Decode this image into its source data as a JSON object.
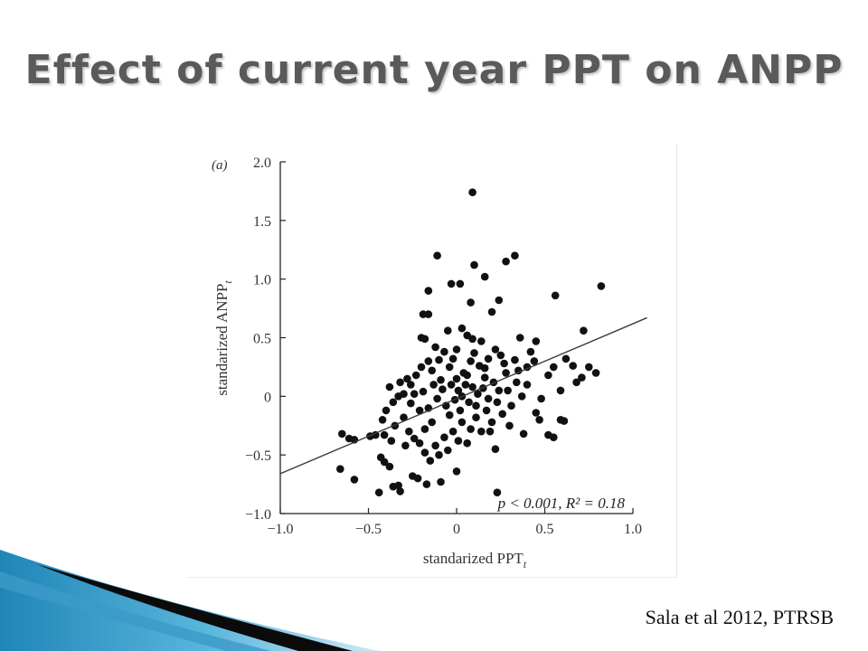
{
  "slide": {
    "title": "Effect of current year PPT on ANPP",
    "citation": "Sala et al 2012, PTRSB"
  },
  "chart_data": {
    "type": "scatter",
    "panel_label": "(a)",
    "xlabel": "standarized PPT",
    "xlabel_subscript": "t",
    "ylabel": "standarized ANPP",
    "ylabel_subscript": "t",
    "xlim": [
      -1.0,
      1.0
    ],
    "ylim": [
      -1.0,
      2.0
    ],
    "x_ticks": [
      -1.0,
      -0.5,
      0,
      0.5,
      1.0
    ],
    "x_tick_labels": [
      "−1.0",
      "−0.5",
      "0",
      "0.5",
      "1.0"
    ],
    "y_ticks": [
      -1.0,
      -0.5,
      0,
      0.5,
      1.0,
      1.5,
      2.0
    ],
    "y_tick_labels": [
      "−1.0",
      "−0.5",
      "0",
      "0.5",
      "1.0",
      "1.5",
      "2.0"
    ],
    "annotation": "p < 0.001, R² = 0.18",
    "grid": false,
    "point_color": "#111111",
    "line_color": "#3a3a3a",
    "regression_line": {
      "x": [
        -1.0,
        1.08
      ],
      "y": [
        -0.66,
        0.67
      ]
    },
    "points": [
      [
        0.09,
        1.74
      ],
      [
        -0.11,
        1.2
      ],
      [
        0.33,
        1.2
      ],
      [
        0.28,
        1.15
      ],
      [
        0.1,
        1.12
      ],
      [
        0.16,
        1.02
      ],
      [
        -0.03,
        0.96
      ],
      [
        0.02,
        0.96
      ],
      [
        0.56,
        0.86
      ],
      [
        0.82,
        0.94
      ],
      [
        -0.16,
        0.9
      ],
      [
        0.24,
        0.82
      ],
      [
        0.08,
        0.8
      ],
      [
        -0.19,
        0.7
      ],
      [
        -0.16,
        0.7
      ],
      [
        0.2,
        0.72
      ],
      [
        0.72,
        0.56
      ],
      [
        0.03,
        0.58
      ],
      [
        -0.05,
        0.56
      ],
      [
        0.06,
        0.52
      ],
      [
        0.09,
        0.49
      ],
      [
        0.36,
        0.5
      ],
      [
        0.45,
        0.47
      ],
      [
        -0.18,
        0.49
      ],
      [
        0.14,
        0.47
      ],
      [
        -0.65,
        -0.32
      ],
      [
        -0.61,
        -0.36
      ],
      [
        -0.58,
        -0.37
      ],
      [
        -0.49,
        -0.34
      ],
      [
        -0.46,
        -0.33
      ],
      [
        -0.41,
        -0.33
      ],
      [
        -0.66,
        -0.62
      ],
      [
        -0.58,
        -0.71
      ],
      [
        -0.43,
        -0.52
      ],
      [
        -0.41,
        -0.56
      ],
      [
        -0.38,
        -0.6
      ],
      [
        -0.44,
        -0.82
      ],
      [
        -0.36,
        -0.77
      ],
      [
        -0.33,
        -0.76
      ],
      [
        -0.32,
        -0.81
      ],
      [
        -0.25,
        -0.68
      ],
      [
        -0.22,
        -0.7
      ],
      [
        -0.17,
        -0.75
      ],
      [
        -0.09,
        -0.73
      ],
      [
        0.0,
        -0.64
      ],
      [
        0.23,
        -0.82
      ],
      [
        0.22,
        -0.45
      ],
      [
        0.38,
        -0.32
      ],
      [
        0.47,
        -0.2
      ],
      [
        0.52,
        -0.33
      ],
      [
        0.55,
        -0.35
      ],
      [
        0.59,
        -0.2
      ],
      [
        0.61,
        -0.21
      ],
      [
        0.45,
        -0.14
      ],
      [
        0.48,
        -0.02
      ],
      [
        0.52,
        0.18
      ],
      [
        0.55,
        0.25
      ],
      [
        0.62,
        0.32
      ],
      [
        0.68,
        0.12
      ],
      [
        0.71,
        0.16
      ],
      [
        0.75,
        0.25
      ],
      [
        0.79,
        0.2
      ],
      [
        0.66,
        0.26
      ],
      [
        0.59,
        0.05
      ],
      [
        0.42,
        0.38
      ],
      [
        0.4,
        0.25
      ],
      [
        0.33,
        0.31
      ],
      [
        0.28,
        0.2
      ],
      [
        0.25,
        0.35
      ],
      [
        0.22,
        0.4
      ],
      [
        0.18,
        0.32
      ],
      [
        0.16,
        0.16
      ],
      [
        0.13,
        0.26
      ],
      [
        0.1,
        0.37
      ],
      [
        0.08,
        0.3
      ],
      [
        0.04,
        0.2
      ],
      [
        0.0,
        0.4
      ],
      [
        -0.02,
        0.32
      ],
      [
        -0.04,
        0.25
      ],
      [
        -0.07,
        0.38
      ],
      [
        -0.1,
        0.31
      ],
      [
        -0.12,
        0.42
      ],
      [
        -0.14,
        0.22
      ],
      [
        -0.16,
        0.3
      ],
      [
        -0.2,
        0.25
      ],
      [
        -0.23,
        0.18
      ],
      [
        -0.26,
        0.1
      ],
      [
        -0.28,
        0.15
      ],
      [
        -0.3,
        0.02
      ],
      [
        -0.33,
        0.0
      ],
      [
        -0.36,
        -0.05
      ],
      [
        -0.38,
        0.08
      ],
      [
        -0.4,
        -0.12
      ],
      [
        -0.42,
        -0.2
      ],
      [
        -0.35,
        -0.25
      ],
      [
        -0.3,
        -0.18
      ],
      [
        -0.27,
        -0.3
      ],
      [
        -0.24,
        -0.36
      ],
      [
        -0.21,
        -0.4
      ],
      [
        -0.18,
        -0.48
      ],
      [
        -0.15,
        -0.55
      ],
      [
        -0.12,
        -0.42
      ],
      [
        -0.1,
        -0.5
      ],
      [
        -0.07,
        -0.35
      ],
      [
        -0.05,
        -0.46
      ],
      [
        -0.02,
        -0.3
      ],
      [
        0.01,
        -0.38
      ],
      [
        0.03,
        -0.22
      ],
      [
        0.06,
        -0.4
      ],
      [
        0.08,
        -0.28
      ],
      [
        0.11,
        -0.18
      ],
      [
        0.14,
        -0.3
      ],
      [
        0.17,
        -0.12
      ],
      [
        0.2,
        -0.22
      ],
      [
        0.23,
        -0.05
      ],
      [
        0.26,
        -0.15
      ],
      [
        0.29,
        0.05
      ],
      [
        0.31,
        -0.08
      ],
      [
        0.34,
        0.12
      ],
      [
        0.37,
        0.0
      ],
      [
        0.01,
        0.05
      ],
      [
        0.03,
        0.0
      ],
      [
        0.05,
        0.1
      ],
      [
        0.07,
        -0.05
      ],
      [
        0.09,
        0.08
      ],
      [
        0.12,
        0.02
      ],
      [
        0.15,
        0.07
      ],
      [
        0.18,
        -0.02
      ],
      [
        0.21,
        0.12
      ],
      [
        0.24,
        0.05
      ],
      [
        -0.01,
        -0.03
      ],
      [
        -0.03,
        0.1
      ],
      [
        -0.06,
        -0.08
      ],
      [
        -0.08,
        0.06
      ],
      [
        -0.11,
        -0.02
      ],
      [
        -0.13,
        0.1
      ],
      [
        -0.16,
        -0.1
      ],
      [
        -0.19,
        0.04
      ],
      [
        -0.21,
        -0.12
      ],
      [
        -0.24,
        0.02
      ],
      [
        0.0,
        0.15
      ],
      [
        0.02,
        -0.12
      ],
      [
        0.06,
        0.18
      ],
      [
        -0.04,
        -0.16
      ],
      [
        0.11,
        -0.08
      ],
      [
        -0.09,
        0.14
      ],
      [
        0.16,
        0.24
      ],
      [
        -0.14,
        -0.22
      ],
      [
        0.19,
        -0.3
      ],
      [
        -0.18,
        -0.28
      ],
      [
        0.27,
        0.28
      ],
      [
        -0.26,
        -0.06
      ],
      [
        0.3,
        -0.25
      ],
      [
        -0.29,
        -0.42
      ],
      [
        0.35,
        0.22
      ],
      [
        -0.32,
        0.12
      ],
      [
        0.4,
        0.1
      ],
      [
        -0.37,
        -0.38
      ],
      [
        0.44,
        0.3
      ],
      [
        -0.2,
        0.5
      ]
    ]
  }
}
